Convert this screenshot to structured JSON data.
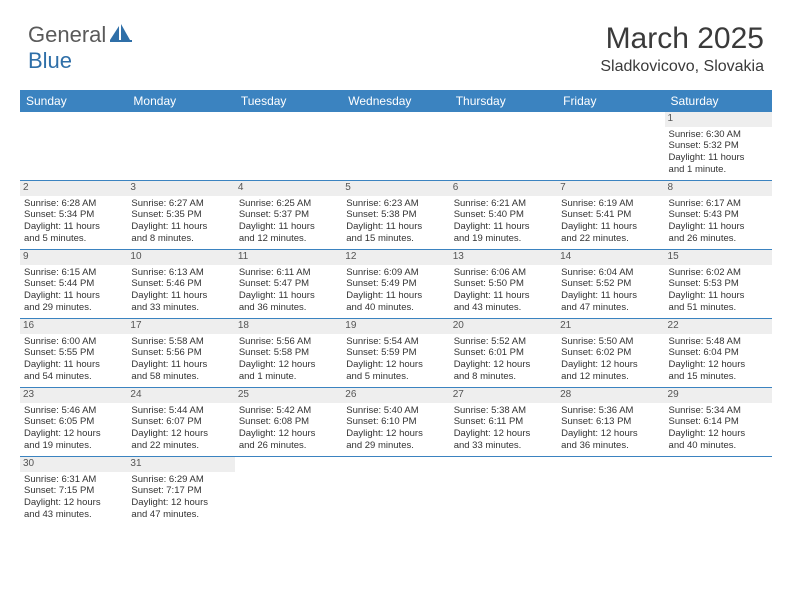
{
  "logo": {
    "general": "General",
    "blue": "Blue"
  },
  "title": "March 2025",
  "location": "Sladkovicovo, Slovakia",
  "colors": {
    "header_bg": "#3b83c0",
    "header_fg": "#ffffff",
    "daynum_bg": "#eeeeee",
    "border": "#3b83c0",
    "logo_gray": "#5a5a5a",
    "logo_blue": "#2f6fa8"
  },
  "day_headers": [
    "Sunday",
    "Monday",
    "Tuesday",
    "Wednesday",
    "Thursday",
    "Friday",
    "Saturday"
  ],
  "weeks": [
    [
      null,
      null,
      null,
      null,
      null,
      null,
      {
        "n": "1",
        "sr": "Sunrise: 6:30 AM",
        "ss": "Sunset: 5:32 PM",
        "d1": "Daylight: 11 hours",
        "d2": "and 1 minute."
      }
    ],
    [
      {
        "n": "2",
        "sr": "Sunrise: 6:28 AM",
        "ss": "Sunset: 5:34 PM",
        "d1": "Daylight: 11 hours",
        "d2": "and 5 minutes."
      },
      {
        "n": "3",
        "sr": "Sunrise: 6:27 AM",
        "ss": "Sunset: 5:35 PM",
        "d1": "Daylight: 11 hours",
        "d2": "and 8 minutes."
      },
      {
        "n": "4",
        "sr": "Sunrise: 6:25 AM",
        "ss": "Sunset: 5:37 PM",
        "d1": "Daylight: 11 hours",
        "d2": "and 12 minutes."
      },
      {
        "n": "5",
        "sr": "Sunrise: 6:23 AM",
        "ss": "Sunset: 5:38 PM",
        "d1": "Daylight: 11 hours",
        "d2": "and 15 minutes."
      },
      {
        "n": "6",
        "sr": "Sunrise: 6:21 AM",
        "ss": "Sunset: 5:40 PM",
        "d1": "Daylight: 11 hours",
        "d2": "and 19 minutes."
      },
      {
        "n": "7",
        "sr": "Sunrise: 6:19 AM",
        "ss": "Sunset: 5:41 PM",
        "d1": "Daylight: 11 hours",
        "d2": "and 22 minutes."
      },
      {
        "n": "8",
        "sr": "Sunrise: 6:17 AM",
        "ss": "Sunset: 5:43 PM",
        "d1": "Daylight: 11 hours",
        "d2": "and 26 minutes."
      }
    ],
    [
      {
        "n": "9",
        "sr": "Sunrise: 6:15 AM",
        "ss": "Sunset: 5:44 PM",
        "d1": "Daylight: 11 hours",
        "d2": "and 29 minutes."
      },
      {
        "n": "10",
        "sr": "Sunrise: 6:13 AM",
        "ss": "Sunset: 5:46 PM",
        "d1": "Daylight: 11 hours",
        "d2": "and 33 minutes."
      },
      {
        "n": "11",
        "sr": "Sunrise: 6:11 AM",
        "ss": "Sunset: 5:47 PM",
        "d1": "Daylight: 11 hours",
        "d2": "and 36 minutes."
      },
      {
        "n": "12",
        "sr": "Sunrise: 6:09 AM",
        "ss": "Sunset: 5:49 PM",
        "d1": "Daylight: 11 hours",
        "d2": "and 40 minutes."
      },
      {
        "n": "13",
        "sr": "Sunrise: 6:06 AM",
        "ss": "Sunset: 5:50 PM",
        "d1": "Daylight: 11 hours",
        "d2": "and 43 minutes."
      },
      {
        "n": "14",
        "sr": "Sunrise: 6:04 AM",
        "ss": "Sunset: 5:52 PM",
        "d1": "Daylight: 11 hours",
        "d2": "and 47 minutes."
      },
      {
        "n": "15",
        "sr": "Sunrise: 6:02 AM",
        "ss": "Sunset: 5:53 PM",
        "d1": "Daylight: 11 hours",
        "d2": "and 51 minutes."
      }
    ],
    [
      {
        "n": "16",
        "sr": "Sunrise: 6:00 AM",
        "ss": "Sunset: 5:55 PM",
        "d1": "Daylight: 11 hours",
        "d2": "and 54 minutes."
      },
      {
        "n": "17",
        "sr": "Sunrise: 5:58 AM",
        "ss": "Sunset: 5:56 PM",
        "d1": "Daylight: 11 hours",
        "d2": "and 58 minutes."
      },
      {
        "n": "18",
        "sr": "Sunrise: 5:56 AM",
        "ss": "Sunset: 5:58 PM",
        "d1": "Daylight: 12 hours",
        "d2": "and 1 minute."
      },
      {
        "n": "19",
        "sr": "Sunrise: 5:54 AM",
        "ss": "Sunset: 5:59 PM",
        "d1": "Daylight: 12 hours",
        "d2": "and 5 minutes."
      },
      {
        "n": "20",
        "sr": "Sunrise: 5:52 AM",
        "ss": "Sunset: 6:01 PM",
        "d1": "Daylight: 12 hours",
        "d2": "and 8 minutes."
      },
      {
        "n": "21",
        "sr": "Sunrise: 5:50 AM",
        "ss": "Sunset: 6:02 PM",
        "d1": "Daylight: 12 hours",
        "d2": "and 12 minutes."
      },
      {
        "n": "22",
        "sr": "Sunrise: 5:48 AM",
        "ss": "Sunset: 6:04 PM",
        "d1": "Daylight: 12 hours",
        "d2": "and 15 minutes."
      }
    ],
    [
      {
        "n": "23",
        "sr": "Sunrise: 5:46 AM",
        "ss": "Sunset: 6:05 PM",
        "d1": "Daylight: 12 hours",
        "d2": "and 19 minutes."
      },
      {
        "n": "24",
        "sr": "Sunrise: 5:44 AM",
        "ss": "Sunset: 6:07 PM",
        "d1": "Daylight: 12 hours",
        "d2": "and 22 minutes."
      },
      {
        "n": "25",
        "sr": "Sunrise: 5:42 AM",
        "ss": "Sunset: 6:08 PM",
        "d1": "Daylight: 12 hours",
        "d2": "and 26 minutes."
      },
      {
        "n": "26",
        "sr": "Sunrise: 5:40 AM",
        "ss": "Sunset: 6:10 PM",
        "d1": "Daylight: 12 hours",
        "d2": "and 29 minutes."
      },
      {
        "n": "27",
        "sr": "Sunrise: 5:38 AM",
        "ss": "Sunset: 6:11 PM",
        "d1": "Daylight: 12 hours",
        "d2": "and 33 minutes."
      },
      {
        "n": "28",
        "sr": "Sunrise: 5:36 AM",
        "ss": "Sunset: 6:13 PM",
        "d1": "Daylight: 12 hours",
        "d2": "and 36 minutes."
      },
      {
        "n": "29",
        "sr": "Sunrise: 5:34 AM",
        "ss": "Sunset: 6:14 PM",
        "d1": "Daylight: 12 hours",
        "d2": "and 40 minutes."
      }
    ],
    [
      {
        "n": "30",
        "sr": "Sunrise: 6:31 AM",
        "ss": "Sunset: 7:15 PM",
        "d1": "Daylight: 12 hours",
        "d2": "and 43 minutes."
      },
      {
        "n": "31",
        "sr": "Sunrise: 6:29 AM",
        "ss": "Sunset: 7:17 PM",
        "d1": "Daylight: 12 hours",
        "d2": "and 47 minutes."
      },
      null,
      null,
      null,
      null,
      null
    ]
  ]
}
